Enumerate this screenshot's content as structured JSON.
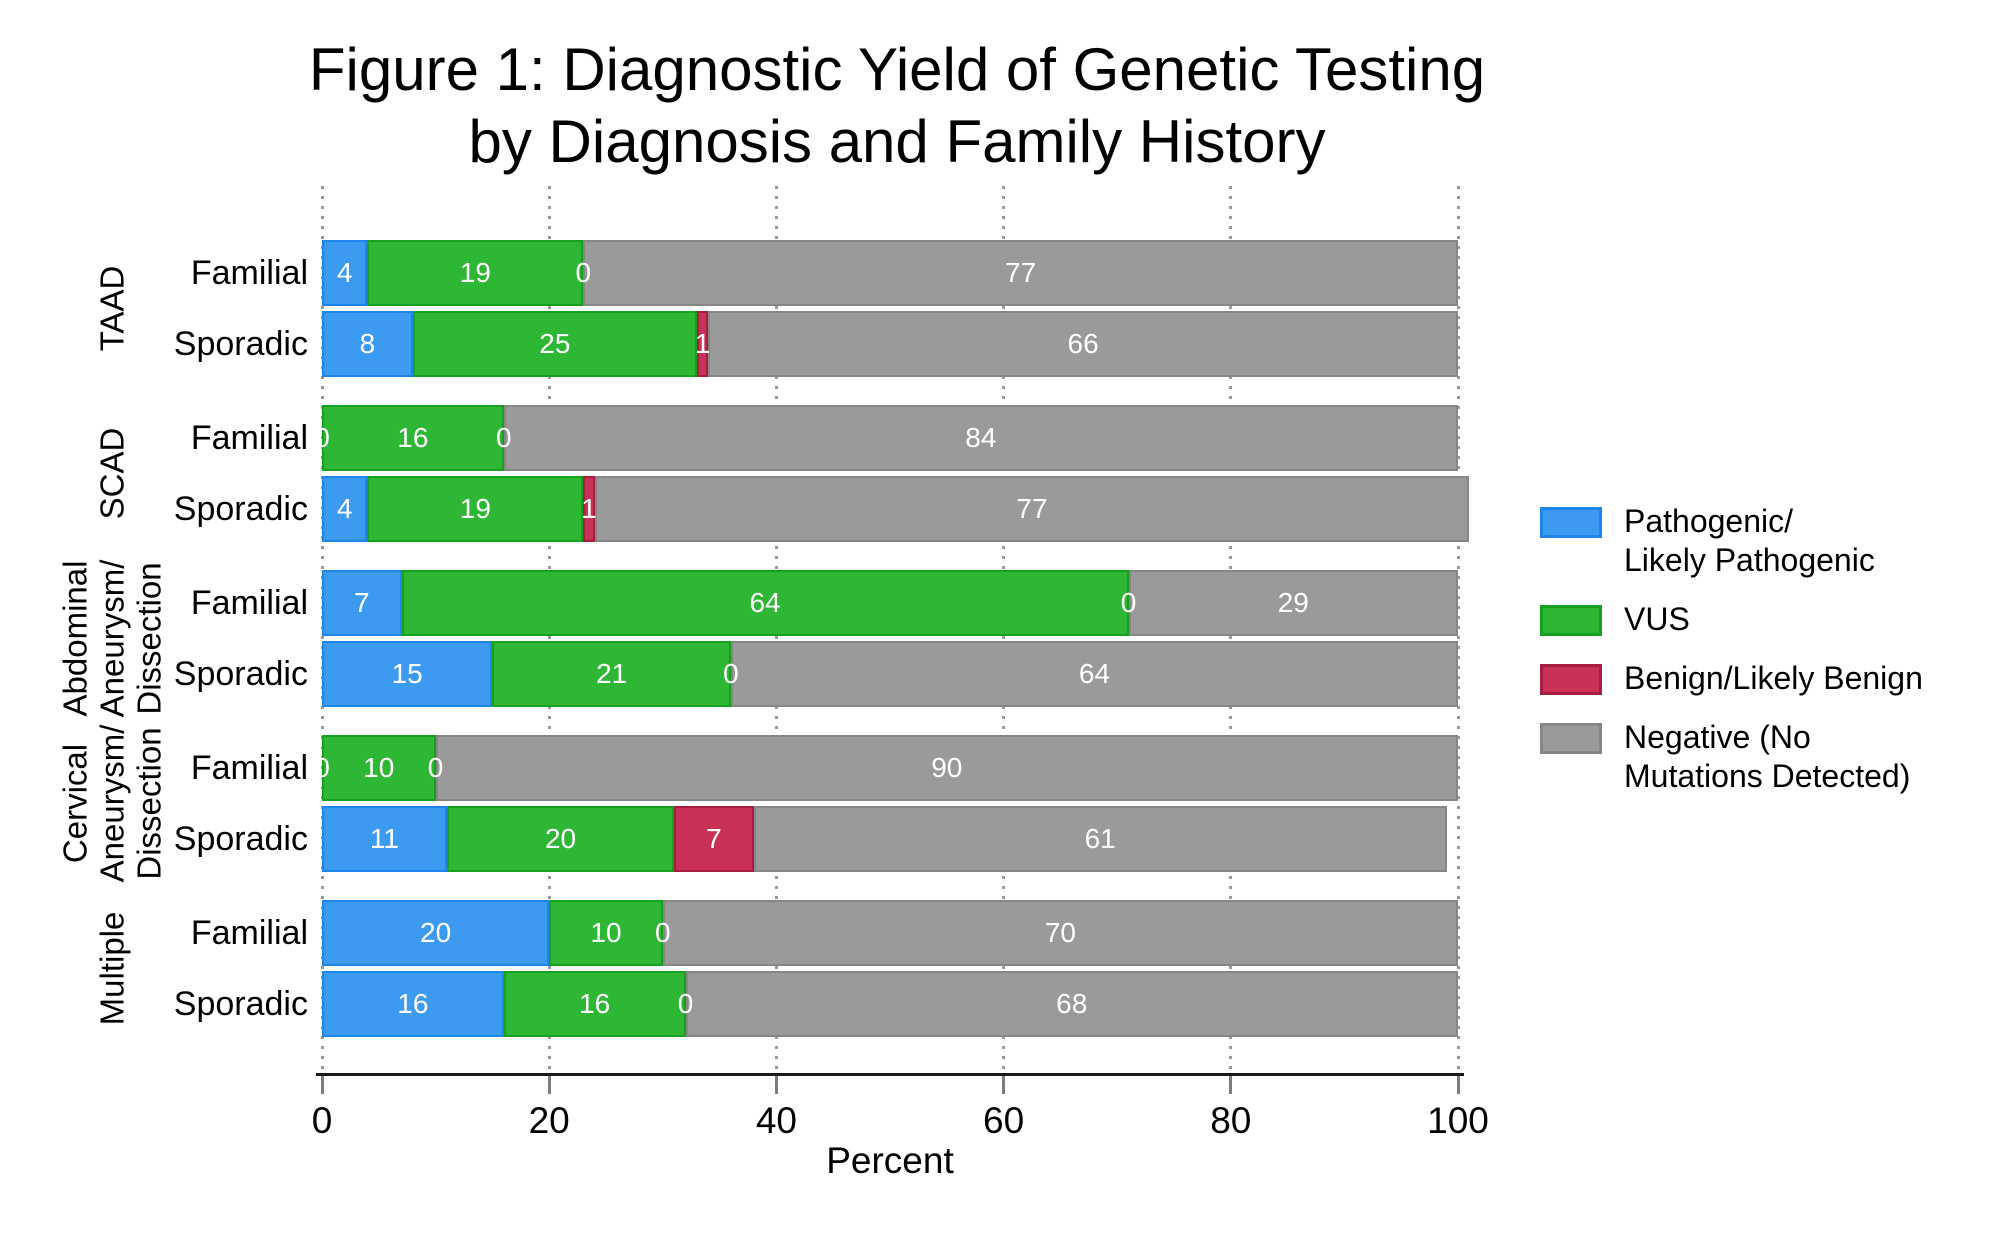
{
  "title": {
    "line1": "Figure 1: Diagnostic Yield of Genetic Testing",
    "line2": "by Diagnosis and Family History"
  },
  "chart_data": {
    "type": "bar",
    "orientation": "horizontal-stacked",
    "title": "Figure 1: Diagnostic Yield of Genetic Testing by Diagnosis and Family History",
    "xlabel": "Percent",
    "xlim": [
      0,
      100
    ],
    "xticks": [
      0,
      20,
      40,
      60,
      80,
      100
    ],
    "grid": "dotted-vertical",
    "legend_position": "right",
    "bar_label_color": "#ffffff",
    "series": [
      {
        "name": "Pathogenic/\nLikely Pathogenic",
        "color": "#3d9af1",
        "border_color": "#1e86e8"
      },
      {
        "name": "VUS",
        "color": "#2eb734",
        "border_color": "#15a11d"
      },
      {
        "name": "Benign/Likely Benign",
        "color": "#c93156",
        "border_color": "#a71d3f"
      },
      {
        "name": "Negative (No\nMutations Detected)",
        "color": "#9a9a9a",
        "border_color": "#868686"
      }
    ],
    "groups": [
      {
        "label": "TAAD",
        "rows": [
          {
            "label": "Familial",
            "values": [
              4,
              19,
              0,
              77
            ]
          },
          {
            "label": "Sporadic",
            "values": [
              8,
              25,
              1,
              66
            ]
          }
        ]
      },
      {
        "label": "SCAD",
        "rows": [
          {
            "label": "Familial",
            "values": [
              0,
              16,
              0,
              84
            ]
          },
          {
            "label": "Sporadic",
            "values": [
              4,
              19,
              1,
              77
            ]
          }
        ]
      },
      {
        "label": "Abdominal\nAneurysm/\nDissection",
        "rows": [
          {
            "label": "Familial",
            "values": [
              7,
              64,
              0,
              29
            ]
          },
          {
            "label": "Sporadic",
            "values": [
              15,
              21,
              0,
              64
            ]
          }
        ]
      },
      {
        "label": "Cervical\nAneurysm/\nDissection",
        "rows": [
          {
            "label": "Familial",
            "values": [
              0,
              10,
              0,
              90
            ]
          },
          {
            "label": "Sporadic",
            "values": [
              11,
              20,
              7,
              61
            ]
          }
        ]
      },
      {
        "label": "Multiple",
        "rows": [
          {
            "label": "Familial",
            "values": [
              20,
              10,
              0,
              70
            ]
          },
          {
            "label": "Sporadic",
            "values": [
              16,
              16,
              0,
              68
            ]
          }
        ]
      }
    ]
  }
}
